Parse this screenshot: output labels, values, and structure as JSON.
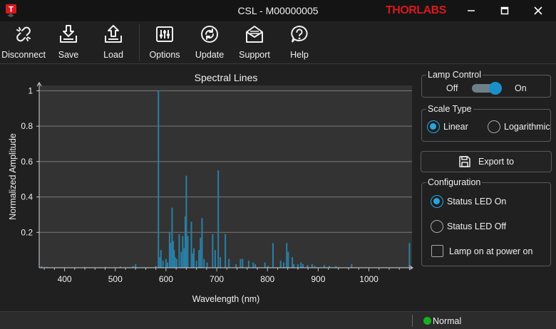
{
  "window": {
    "title": "CSL - M00000005",
    "brand": "THORLABS",
    "app_icon": "thorlabs-app-icon"
  },
  "toolbar": {
    "disconnect_label": "Disconnect",
    "save_label": "Save",
    "load_label": "Load",
    "options_label": "Options",
    "update_label": "Update",
    "support_label": "Support",
    "help_label": "Help"
  },
  "lamp_control": {
    "title": "Lamp Control",
    "off_label": "Off",
    "on_label": "On",
    "state": "on"
  },
  "scale_type": {
    "title": "Scale  Type",
    "linear_label": "Linear",
    "log_label": "Logarithmic",
    "selected": "linear"
  },
  "export": {
    "label": "Export to"
  },
  "configuration": {
    "title": "Configuration",
    "led_on_label": "Status LED On",
    "led_off_label": "Status LED Off",
    "lamp_power_label": "Lamp on at power on",
    "led_selected": "on",
    "lamp_on_at_power_on": false
  },
  "status": {
    "text": "Normal",
    "led_color": "#13b21e"
  },
  "colors": {
    "accent": "#1b8fc7",
    "background": "#1f1f1f",
    "plot_bg": "#333333",
    "line": "#2a7fa6"
  },
  "chart_data": {
    "type": "bar",
    "title": "Spectral Lines",
    "xlabel": "Wavelength (nm)",
    "ylabel": "Normalized  Amplitude",
    "xlim": [
      350,
      1085
    ],
    "ylim": [
      0,
      1.03
    ],
    "xticks": [
      400,
      500,
      600,
      700,
      800,
      900,
      1000
    ],
    "yticks": [
      0.2,
      0.4,
      0.6,
      0.8,
      1
    ],
    "ytick_labels": [
      "0.2",
      "0.4",
      "0.6",
      "0.8",
      "1"
    ],
    "grid": true,
    "legend": "none",
    "lines": [
      [
        355,
        0.01
      ],
      [
        365,
        0.005
      ],
      [
        440,
        0.005
      ],
      [
        480,
        0.005
      ],
      [
        510,
        0.008
      ],
      [
        535,
        0.01
      ],
      [
        540,
        0.02
      ],
      [
        580,
        0.01
      ],
      [
        585,
        1.0
      ],
      [
        588,
        0.06
      ],
      [
        590,
        0.1
      ],
      [
        594,
        0.04
      ],
      [
        600,
        0.05
      ],
      [
        603,
        0.03
      ],
      [
        607,
        0.2
      ],
      [
        609,
        0.14
      ],
      [
        612,
        0.34
      ],
      [
        614,
        0.15
      ],
      [
        616,
        0.1
      ],
      [
        618,
        0.06
      ],
      [
        621,
        0.05
      ],
      [
        626,
        0.19
      ],
      [
        630,
        0.09
      ],
      [
        633,
        0.18
      ],
      [
        636,
        0.11
      ],
      [
        638,
        0.29
      ],
      [
        640,
        0.52
      ],
      [
        643,
        0.18
      ],
      [
        650,
        0.26
      ],
      [
        653,
        0.08
      ],
      [
        655,
        0.11
      ],
      [
        660,
        0.04
      ],
      [
        665,
        0.1
      ],
      [
        668,
        0.17
      ],
      [
        671,
        0.28
      ],
      [
        675,
        0.05
      ],
      [
        681,
        0.03
      ],
      [
        692,
        0.19
      ],
      [
        697,
        0.1
      ],
      [
        703,
        0.55
      ],
      [
        707,
        0.06
      ],
      [
        717,
        0.19
      ],
      [
        724,
        0.05
      ],
      [
        738,
        0.02
      ],
      [
        747,
        0.05
      ],
      [
        751,
        0.05
      ],
      [
        763,
        0.04
      ],
      [
        772,
        0.03
      ],
      [
        776,
        0.02
      ],
      [
        795,
        0.03
      ],
      [
        801,
        0.01
      ],
      [
        811,
        0.14
      ],
      [
        826,
        0.04
      ],
      [
        832,
        0.03
      ],
      [
        838,
        0.14
      ],
      [
        841,
        0.09
      ],
      [
        849,
        0.06
      ],
      [
        852,
        0.02
      ],
      [
        860,
        0.02
      ],
      [
        866,
        0.03
      ],
      [
        870,
        0.02
      ],
      [
        879,
        0.015
      ],
      [
        888,
        0.02
      ],
      [
        893,
        0.01
      ],
      [
        912,
        0.015
      ],
      [
        922,
        0.01
      ],
      [
        935,
        0.01
      ],
      [
        966,
        0.02
      ],
      [
        1080,
        0.14
      ]
    ]
  }
}
